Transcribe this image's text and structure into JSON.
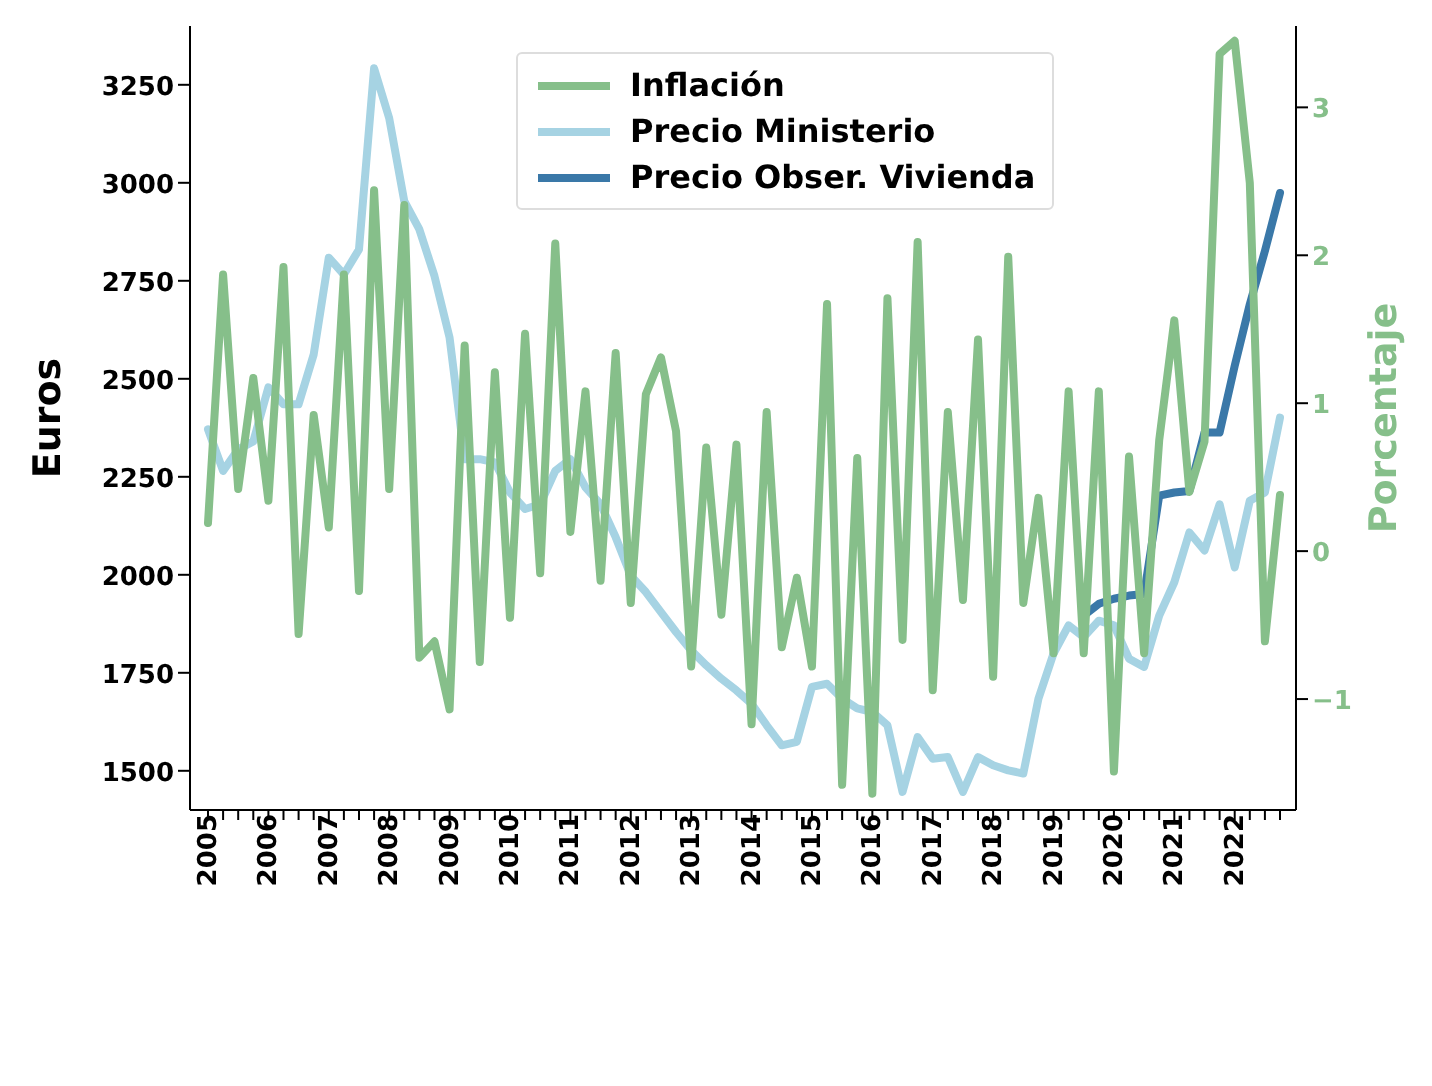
{
  "chart_data": {
    "type": "line",
    "categories": [
      "2005",
      null,
      null,
      null,
      "2006",
      null,
      null,
      null,
      "2007",
      null,
      null,
      null,
      "2008",
      null,
      null,
      null,
      "2009",
      null,
      null,
      null,
      "2010",
      null,
      null,
      null,
      "2011",
      null,
      null,
      null,
      "2012",
      null,
      null,
      null,
      "2013",
      null,
      null,
      null,
      "2014",
      null,
      null,
      null,
      "2015",
      null,
      null,
      null,
      "2016",
      null,
      null,
      null,
      "2017",
      null,
      null,
      null,
      "2018",
      null,
      null,
      null,
      "2019",
      null,
      null,
      null,
      "2020",
      null,
      null,
      null,
      "2021",
      null,
      null,
      null,
      "2022",
      null,
      null,
      null
    ],
    "series": [
      {
        "name": "Precio Ministerio",
        "color": "#a6d3e3",
        "values": [
          2371,
          2265,
          2320,
          2340,
          2478,
          2435,
          2435,
          2562,
          2809,
          2766,
          2830,
          3292,
          3165,
          2953,
          2881,
          2762,
          2605,
          2295,
          2295,
          2287,
          2210,
          2168,
          2180,
          2265,
          2295,
          2223,
          2180,
          2096,
          1998,
          1956,
          1905,
          1854,
          1807,
          1769,
          1735,
          1705,
          1671,
          1616,
          1565,
          1574,
          1714,
          1722,
          1684,
          1659,
          1650,
          1616,
          1446,
          1586,
          1531,
          1535,
          1446,
          1535,
          1514,
          1501,
          1493,
          1684,
          1799,
          1871,
          1841,
          1883,
          1871,
          1786,
          1765,
          1896,
          1981,
          2108,
          2062,
          2180,
          2019,
          2189,
          2210,
          2401
        ]
      },
      {
        "name": "Precio Obser. Vivienda",
        "color": "#3a78a8",
        "values": [
          null,
          null,
          null,
          null,
          null,
          null,
          null,
          null,
          null,
          null,
          null,
          null,
          null,
          null,
          null,
          null,
          null,
          null,
          null,
          null,
          null,
          null,
          null,
          null,
          null,
          null,
          null,
          null,
          null,
          null,
          null,
          null,
          null,
          null,
          null,
          null,
          null,
          null,
          null,
          null,
          null,
          null,
          null,
          null,
          null,
          null,
          null,
          null,
          null,
          null,
          null,
          null,
          null,
          null,
          null,
          null,
          null,
          null,
          1896,
          1926,
          1939,
          1947,
          1951,
          2202,
          2210,
          2214,
          2363,
          2363,
          2533,
          2690,
          2826,
          2974
        ]
      },
      {
        "name": "Inflación",
        "color": "#86bf8a",
        "axis": "y2",
        "values": [
          0.19,
          1.87,
          0.42,
          1.17,
          0.34,
          1.92,
          -0.56,
          0.92,
          0.16,
          1.87,
          -0.27,
          2.44,
          0.42,
          2.34,
          -0.72,
          -0.61,
          -1.07,
          1.39,
          -0.75,
          1.21,
          -0.45,
          1.47,
          -0.15,
          2.08,
          0.13,
          1.08,
          -0.2,
          1.34,
          -0.35,
          1.06,
          1.31,
          0.81,
          -0.78,
          0.7,
          -0.43,
          0.72,
          -1.17,
          0.94,
          -0.65,
          -0.18,
          -0.78,
          1.67,
          -1.58,
          0.63,
          -1.64,
          1.71,
          -0.6,
          2.09,
          -0.94,
          0.94,
          -0.33,
          1.43,
          -0.85,
          1.99,
          -0.35,
          0.36,
          -0.69,
          1.08,
          -0.69,
          1.08,
          -1.49,
          0.64,
          -0.69,
          0.75,
          1.56,
          0.4,
          0.74,
          3.36,
          3.45,
          2.49,
          -0.61,
          0.38
        ]
      }
    ],
    "ylabel": "Euros",
    "y2label": "Porcentaje",
    "ylim": [
      1400,
      3400
    ],
    "yticks": [
      1500,
      1750,
      2000,
      2250,
      2500,
      2750,
      3000,
      3250
    ],
    "y2lim": [
      -1.75,
      3.55
    ],
    "y2ticks": [
      {
        "value": -1,
        "label": "−1"
      },
      0,
      1,
      2,
      3
    ],
    "legend": "top",
    "grid": false
  }
}
